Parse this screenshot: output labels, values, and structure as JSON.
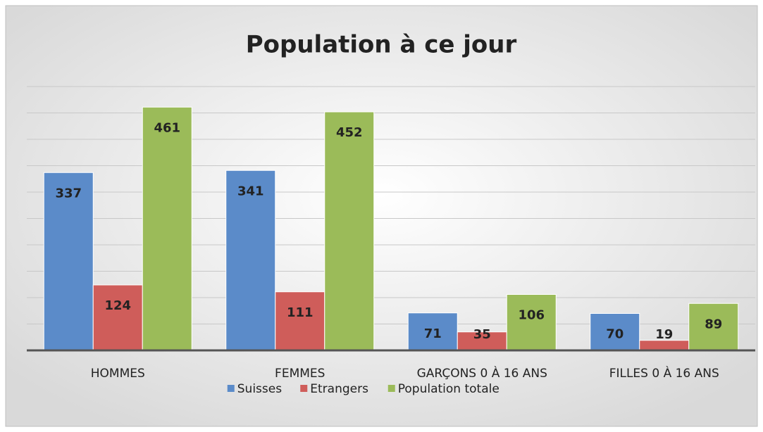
{
  "chart_data": {
    "type": "bar",
    "title": "Population à ce jour",
    "categories": [
      "HOMMES",
      "FEMMES",
      "GARÇONS 0 À 16 ANS",
      "FILLES 0 À 16 ANS"
    ],
    "series": [
      {
        "name": "Suisses",
        "color": "#5b8bc9",
        "values": [
          337,
          341,
          71,
          70
        ]
      },
      {
        "name": "Etrangers",
        "color": "#cf5d5a",
        "values": [
          124,
          111,
          35,
          19
        ]
      },
      {
        "name": "Population totale",
        "color": "#9bbb59",
        "values": [
          461,
          452,
          106,
          89
        ]
      }
    ],
    "ylim": [
      0,
      500
    ],
    "yticks": [
      0,
      50,
      100,
      150,
      200,
      250,
      300,
      350,
      400,
      450,
      500
    ],
    "grid": true,
    "legend": "bottom"
  }
}
